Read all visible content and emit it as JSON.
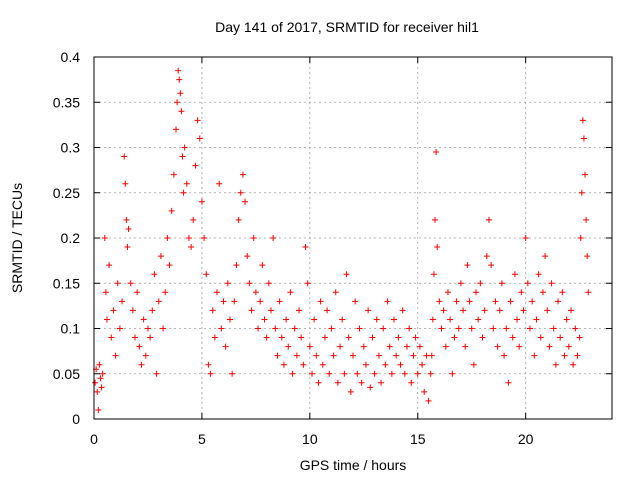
{
  "chart_data": {
    "type": "scatter",
    "title": "Day 141 of 2017, SRMTID for receiver hil1",
    "xlabel": "GPS time / hours",
    "ylabel": "SRMTID / TECUs",
    "xlim": [
      0,
      24
    ],
    "ylim": [
      0,
      0.4
    ],
    "xticks": [
      0,
      5,
      10,
      15,
      20
    ],
    "yticks": [
      0,
      0.05,
      0.1,
      0.15,
      0.2,
      0.25,
      0.3,
      0.35,
      0.4
    ],
    "xtick_labels": [
      "0",
      "5",
      "10",
      "15",
      "20"
    ],
    "ytick_labels": [
      "0",
      "0.05",
      "0.1",
      "0.15",
      "0.2",
      "0.25",
      "0.3",
      "0.35",
      "0.4"
    ],
    "grid": true,
    "marker": "+",
    "color": "#ff0000",
    "series": [
      {
        "name": "SRMTID",
        "points": [
          [
            0.05,
            0.04
          ],
          [
            0.1,
            0.055
          ],
          [
            0.15,
            0.03
          ],
          [
            0.2,
            0.01
          ],
          [
            0.25,
            0.06
          ],
          [
            0.3,
            0.045
          ],
          [
            0.35,
            0.035
          ],
          [
            0.4,
            0.05
          ],
          [
            0.5,
            0.2
          ],
          [
            0.55,
            0.14
          ],
          [
            0.6,
            0.11
          ],
          [
            0.7,
            0.17
          ],
          [
            0.8,
            0.09
          ],
          [
            0.9,
            0.12
          ],
          [
            1.0,
            0.07
          ],
          [
            1.1,
            0.15
          ],
          [
            1.2,
            0.1
          ],
          [
            1.3,
            0.13
          ],
          [
            1.4,
            0.29
          ],
          [
            1.45,
            0.26
          ],
          [
            1.5,
            0.22
          ],
          [
            1.55,
            0.19
          ],
          [
            1.6,
            0.21
          ],
          [
            1.7,
            0.15
          ],
          [
            1.8,
            0.12
          ],
          [
            1.9,
            0.09
          ],
          [
            2.0,
            0.14
          ],
          [
            2.1,
            0.08
          ],
          [
            2.2,
            0.06
          ],
          [
            2.3,
            0.11
          ],
          [
            2.4,
            0.07
          ],
          [
            2.5,
            0.1
          ],
          [
            2.6,
            0.09
          ],
          [
            2.7,
            0.12
          ],
          [
            2.8,
            0.16
          ],
          [
            2.9,
            0.05
          ],
          [
            3.0,
            0.13
          ],
          [
            3.1,
            0.18
          ],
          [
            3.2,
            0.1
          ],
          [
            3.3,
            0.14
          ],
          [
            3.4,
            0.2
          ],
          [
            3.5,
            0.17
          ],
          [
            3.6,
            0.23
          ],
          [
            3.7,
            0.27
          ],
          [
            3.8,
            0.32
          ],
          [
            3.85,
            0.35
          ],
          [
            3.9,
            0.385
          ],
          [
            3.95,
            0.375
          ],
          [
            4.0,
            0.36
          ],
          [
            4.05,
            0.34
          ],
          [
            4.1,
            0.29
          ],
          [
            4.15,
            0.25
          ],
          [
            4.2,
            0.3
          ],
          [
            4.3,
            0.26
          ],
          [
            4.4,
            0.2
          ],
          [
            4.5,
            0.19
          ],
          [
            4.6,
            0.22
          ],
          [
            4.7,
            0.28
          ],
          [
            4.8,
            0.33
          ],
          [
            4.9,
            0.31
          ],
          [
            5.0,
            0.24
          ],
          [
            5.1,
            0.2
          ],
          [
            5.2,
            0.16
          ],
          [
            5.3,
            0.06
          ],
          [
            5.4,
            0.05
          ],
          [
            5.5,
            0.12
          ],
          [
            5.6,
            0.09
          ],
          [
            5.7,
            0.14
          ],
          [
            5.8,
            0.26
          ],
          [
            5.9,
            0.1
          ],
          [
            6.0,
            0.13
          ],
          [
            6.1,
            0.08
          ],
          [
            6.2,
            0.15
          ],
          [
            6.3,
            0.11
          ],
          [
            6.4,
            0.05
          ],
          [
            6.5,
            0.13
          ],
          [
            6.6,
            0.17
          ],
          [
            6.7,
            0.22
          ],
          [
            6.8,
            0.25
          ],
          [
            6.9,
            0.27
          ],
          [
            7.0,
            0.24
          ],
          [
            7.1,
            0.18
          ],
          [
            7.2,
            0.15
          ],
          [
            7.3,
            0.12
          ],
          [
            7.4,
            0.2
          ],
          [
            7.5,
            0.14
          ],
          [
            7.6,
            0.1
          ],
          [
            7.7,
            0.13
          ],
          [
            7.8,
            0.17
          ],
          [
            7.9,
            0.11
          ],
          [
            8.0,
            0.09
          ],
          [
            8.1,
            0.15
          ],
          [
            8.2,
            0.12
          ],
          [
            8.3,
            0.2
          ],
          [
            8.4,
            0.1
          ],
          [
            8.5,
            0.07
          ],
          [
            8.6,
            0.13
          ],
          [
            8.7,
            0.09
          ],
          [
            8.8,
            0.06
          ],
          [
            8.9,
            0.11
          ],
          [
            9.0,
            0.08
          ],
          [
            9.1,
            0.14
          ],
          [
            9.2,
            0.05
          ],
          [
            9.3,
            0.1
          ],
          [
            9.4,
            0.07
          ],
          [
            9.5,
            0.12
          ],
          [
            9.6,
            0.09
          ],
          [
            9.7,
            0.06
          ],
          [
            9.8,
            0.19
          ],
          [
            9.9,
            0.15
          ],
          [
            10.0,
            0.08
          ],
          [
            10.1,
            0.05
          ],
          [
            10.2,
            0.11
          ],
          [
            10.3,
            0.07
          ],
          [
            10.4,
            0.04
          ],
          [
            10.5,
            0.13
          ],
          [
            10.6,
            0.06
          ],
          [
            10.7,
            0.09
          ],
          [
            10.8,
            0.12
          ],
          [
            10.9,
            0.05
          ],
          [
            11.0,
            0.1
          ],
          [
            11.1,
            0.07
          ],
          [
            11.2,
            0.14
          ],
          [
            11.3,
            0.04
          ],
          [
            11.4,
            0.08
          ],
          [
            11.5,
            0.11
          ],
          [
            11.6,
            0.05
          ],
          [
            11.7,
            0.16
          ],
          [
            11.8,
            0.09
          ],
          [
            11.9,
            0.03
          ],
          [
            12.0,
            0.07
          ],
          [
            12.1,
            0.13
          ],
          [
            12.2,
            0.05
          ],
          [
            12.3,
            0.1
          ],
          [
            12.4,
            0.04
          ],
          [
            12.5,
            0.08
          ],
          [
            12.6,
            0.06
          ],
          [
            12.7,
            0.12
          ],
          [
            12.8,
            0.035
          ],
          [
            12.9,
            0.09
          ],
          [
            13.0,
            0.05
          ],
          [
            13.1,
            0.11
          ],
          [
            13.2,
            0.07
          ],
          [
            13.3,
            0.04
          ],
          [
            13.4,
            0.1
          ],
          [
            13.5,
            0.06
          ],
          [
            13.6,
            0.13
          ],
          [
            13.7,
            0.08
          ],
          [
            13.8,
            0.05
          ],
          [
            13.9,
            0.11
          ],
          [
            14.0,
            0.07
          ],
          [
            14.1,
            0.09
          ],
          [
            14.2,
            0.06
          ],
          [
            14.3,
            0.12
          ],
          [
            14.4,
            0.05
          ],
          [
            14.5,
            0.08
          ],
          [
            14.6,
            0.1
          ],
          [
            14.7,
            0.04
          ],
          [
            14.8,
            0.07
          ],
          [
            14.9,
            0.09
          ],
          [
            15.0,
            0.05
          ],
          [
            15.1,
            0.08
          ],
          [
            15.2,
            0.06
          ],
          [
            15.3,
            0.03
          ],
          [
            15.4,
            0.07
          ],
          [
            15.5,
            0.02
          ],
          [
            15.6,
            0.05
          ],
          [
            15.65,
            0.07
          ],
          [
            15.7,
            0.11
          ],
          [
            15.75,
            0.16
          ],
          [
            15.8,
            0.22
          ],
          [
            15.85,
            0.295
          ],
          [
            15.9,
            0.19
          ],
          [
            16.0,
            0.13
          ],
          [
            16.1,
            0.1
          ],
          [
            16.2,
            0.12
          ],
          [
            16.3,
            0.08
          ],
          [
            16.4,
            0.14
          ],
          [
            16.5,
            0.11
          ],
          [
            16.6,
            0.05
          ],
          [
            16.7,
            0.09
          ],
          [
            16.8,
            0.13
          ],
          [
            16.9,
            0.1
          ],
          [
            17.0,
            0.15
          ],
          [
            17.1,
            0.12
          ],
          [
            17.2,
            0.08
          ],
          [
            17.3,
            0.17
          ],
          [
            17.4,
            0.13
          ],
          [
            17.5,
            0.1
          ],
          [
            17.6,
            0.06
          ],
          [
            17.7,
            0.14
          ],
          [
            17.8,
            0.11
          ],
          [
            17.9,
            0.15
          ],
          [
            18.0,
            0.09
          ],
          [
            18.1,
            0.12
          ],
          [
            18.2,
            0.18
          ],
          [
            18.3,
            0.22
          ],
          [
            18.4,
            0.17
          ],
          [
            18.5,
            0.1
          ],
          [
            18.6,
            0.13
          ],
          [
            18.7,
            0.08
          ],
          [
            18.8,
            0.12
          ],
          [
            18.9,
            0.15
          ],
          [
            19.0,
            0.07
          ],
          [
            19.1,
            0.1
          ],
          [
            19.2,
            0.04
          ],
          [
            19.3,
            0.13
          ],
          [
            19.4,
            0.09
          ],
          [
            19.5,
            0.16
          ],
          [
            19.6,
            0.11
          ],
          [
            19.7,
            0.08
          ],
          [
            19.8,
            0.14
          ],
          [
            19.9,
            0.12
          ],
          [
            20.0,
            0.2
          ],
          [
            20.1,
            0.15
          ],
          [
            20.2,
            0.1
          ],
          [
            20.3,
            0.13
          ],
          [
            20.4,
            0.07
          ],
          [
            20.5,
            0.11
          ],
          [
            20.6,
            0.16
          ],
          [
            20.7,
            0.09
          ],
          [
            20.8,
            0.14
          ],
          [
            20.9,
            0.18
          ],
          [
            21.0,
            0.12
          ],
          [
            21.1,
            0.08
          ],
          [
            21.2,
            0.15
          ],
          [
            21.3,
            0.1
          ],
          [
            21.4,
            0.06
          ],
          [
            21.5,
            0.13
          ],
          [
            21.6,
            0.09
          ],
          [
            21.7,
            0.14
          ],
          [
            21.8,
            0.07
          ],
          [
            21.9,
            0.11
          ],
          [
            22.0,
            0.08
          ],
          [
            22.1,
            0.12
          ],
          [
            22.2,
            0.06
          ],
          [
            22.3,
            0.1
          ],
          [
            22.4,
            0.07
          ],
          [
            22.5,
            0.09
          ],
          [
            22.55,
            0.2
          ],
          [
            22.6,
            0.25
          ],
          [
            22.65,
            0.33
          ],
          [
            22.7,
            0.31
          ],
          [
            22.75,
            0.27
          ],
          [
            22.8,
            0.22
          ],
          [
            22.85,
            0.18
          ],
          [
            22.9,
            0.14
          ]
        ]
      }
    ]
  }
}
